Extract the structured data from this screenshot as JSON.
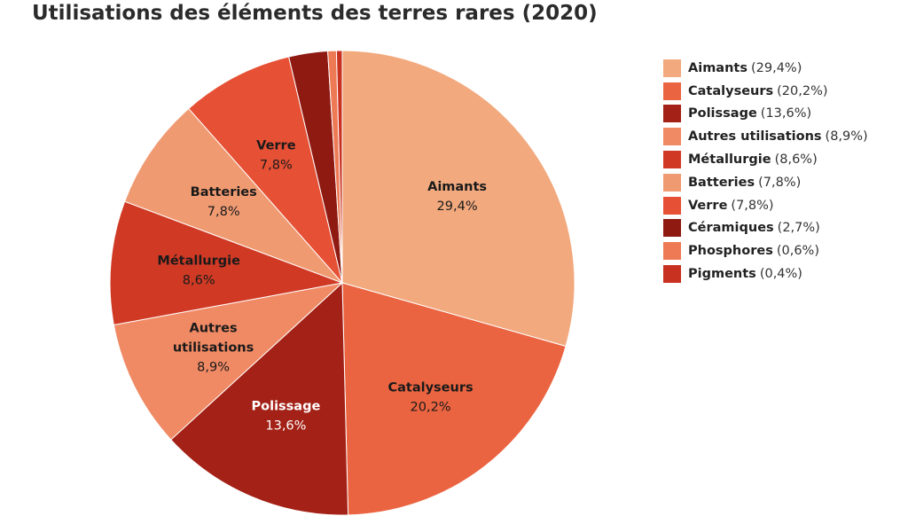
{
  "chart_data": {
    "type": "pie",
    "title": "Utilisations des éléments des terres rares (2020)",
    "slices": [
      {
        "name": "Aimants",
        "value": 29.4,
        "pct": "29,4%",
        "color": "#F2A97E",
        "label_lines": [
          "Aimants"
        ],
        "label_color": "#1a1a1a"
      },
      {
        "name": "Catalyseurs",
        "value": 20.2,
        "pct": "20,2%",
        "color": "#EB6441",
        "label_lines": [
          "Catalyseurs"
        ],
        "label_color": "#1a1a1a"
      },
      {
        "name": "Polissage",
        "value": 13.6,
        "pct": "13,6%",
        "color": "#A32116",
        "label_lines": [
          "Polissage"
        ],
        "label_color": "#ffffff"
      },
      {
        "name": "Autres utilisations",
        "value": 8.9,
        "pct": "8,9%",
        "color": "#F08A64",
        "label_lines": [
          "Autres",
          "utilisations"
        ],
        "label_color": "#1a1a1a"
      },
      {
        "name": "Métallurgie",
        "value": 8.6,
        "pct": "8,6%",
        "color": "#D03A25",
        "label_lines": [
          "Métallurgie"
        ],
        "label_color": "#1a1a1a"
      },
      {
        "name": "Batteries",
        "value": 7.8,
        "pct": "7,8%",
        "color": "#F09A72",
        "label_lines": [
          "Batteries"
        ],
        "label_color": "#1a1a1a"
      },
      {
        "name": "Verre",
        "value": 7.8,
        "pct": "7,8%",
        "color": "#E65034",
        "label_lines": [
          "Verre"
        ],
        "label_color": "#1a1a1a"
      },
      {
        "name": "Céramiques",
        "value": 2.7,
        "pct": "2,7%",
        "color": "#8E1A12",
        "label_lines": [],
        "label_color": "#1a1a1a"
      },
      {
        "name": "Phosphores",
        "value": 0.6,
        "pct": "0,6%",
        "color": "#EE7A55",
        "label_lines": [],
        "label_color": "#1a1a1a"
      },
      {
        "name": "Pigments",
        "value": 0.4,
        "pct": "0,4%",
        "color": "#C8301F",
        "label_lines": [],
        "label_color": "#1a1a1a"
      }
    ],
    "legend_placement": "right"
  }
}
